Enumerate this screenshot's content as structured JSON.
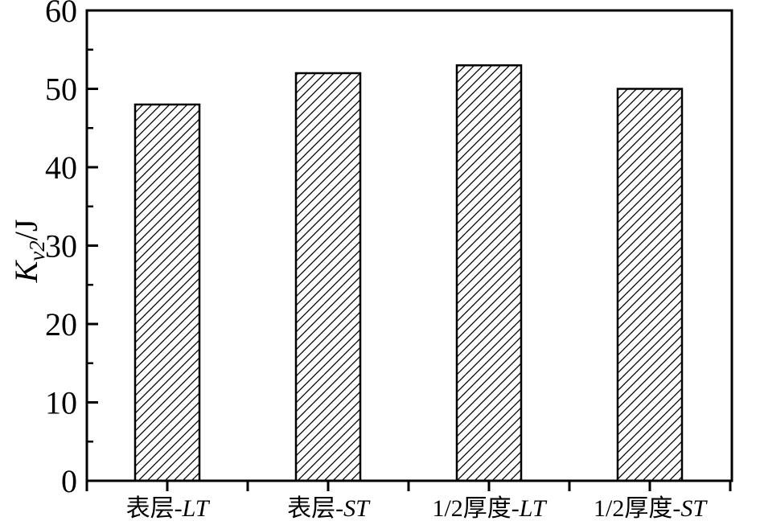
{
  "chart_data": {
    "type": "bar",
    "title": "",
    "categories": [
      "表层-LT",
      "表层-ST",
      "1/2厚度-LT",
      "1/2厚度-ST"
    ],
    "values": [
      48,
      52,
      53,
      50
    ],
    "xlabel": "",
    "ylabel": "Kv2/J",
    "ylabel_parts": {
      "symbol": "K",
      "subscript": "v2",
      "suffix": "/J"
    },
    "ylim": [
      0,
      60
    ],
    "y_tick_labels": [
      "0",
      "10",
      "20",
      "30",
      "40",
      "50",
      "60"
    ],
    "y_major_tick_step": 10,
    "y_minor_tick_step": 5,
    "x_tick_half_step": true,
    "grid": false,
    "legend": "none",
    "bar_style": {
      "fill_pattern": "diagonal-hatch",
      "hatch_direction": "/",
      "outline_color": "#000000",
      "fill_background": "#ffffff"
    },
    "colors": {
      "axis": "#000000",
      "text": "#000000",
      "background": "#ffffff"
    }
  }
}
